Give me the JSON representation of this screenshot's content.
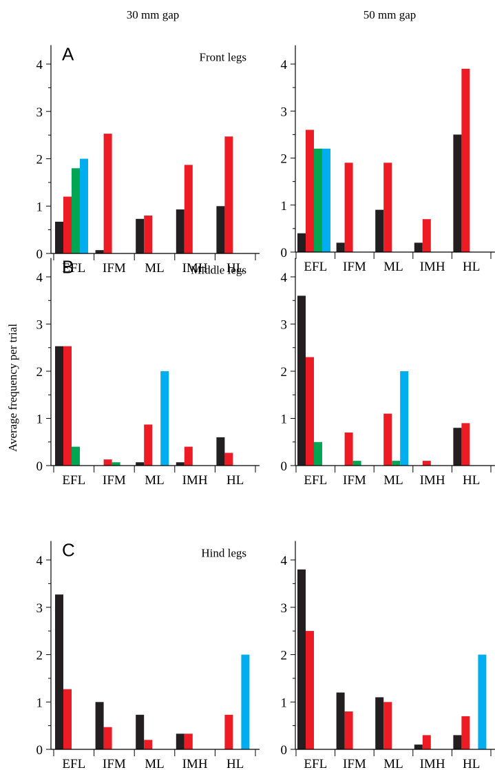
{
  "column_titles": [
    "30 mm gap",
    "50 mm gap"
  ],
  "ylabel": "Average frequency per trial",
  "colors": {
    "series1": "#231f20",
    "series2": "#ed1c24",
    "series3": "#00a651",
    "series4": "#00aeef",
    "axis": "#000000"
  },
  "chart_data": [
    {
      "type": "bar",
      "panel": "A",
      "subtitle": "Front legs",
      "column": "30 mm gap",
      "categories": [
        "EFL",
        "IFM",
        "ML",
        "IMH",
        "HL"
      ],
      "ylim": [
        0,
        4.4
      ],
      "yticks": [
        0,
        1,
        2,
        3,
        4
      ],
      "series": [
        {
          "values": [
            0.67,
            0.07,
            0.73,
            0.93,
            1.0
          ]
        },
        {
          "values": [
            1.2,
            2.53,
            0.8,
            1.87,
            2.47
          ]
        },
        {
          "values": [
            1.8,
            0,
            0,
            0,
            0
          ]
        },
        {
          "values": [
            2.0,
            0,
            0,
            0,
            0
          ]
        }
      ]
    },
    {
      "type": "bar",
      "panel": "A",
      "column": "50 mm gap",
      "categories": [
        "EFL",
        "IFM",
        "ML",
        "IMH",
        "HL"
      ],
      "ylim": [
        0,
        4.4
      ],
      "yticks": [
        0,
        1,
        2,
        3,
        4
      ],
      "series": [
        {
          "values": [
            0.4,
            0.2,
            0.9,
            0.2,
            2.5
          ]
        },
        {
          "values": [
            2.6,
            1.9,
            1.9,
            0.7,
            3.9
          ]
        },
        {
          "values": [
            2.2,
            0,
            0,
            0,
            0
          ]
        },
        {
          "values": [
            2.2,
            0,
            0,
            0,
            0
          ]
        }
      ]
    },
    {
      "type": "bar",
      "panel": "B",
      "subtitle": "Middle legs",
      "column": "30 mm gap",
      "categories": [
        "EFL",
        "IFM",
        "ML",
        "IMH",
        "HL"
      ],
      "ylim": [
        0,
        4.4
      ],
      "yticks": [
        0,
        1,
        2,
        3,
        4
      ],
      "series": [
        {
          "values": [
            2.53,
            0,
            0.07,
            0.07,
            0.6
          ]
        },
        {
          "values": [
            2.53,
            0.13,
            0.87,
            0.4,
            0.27
          ]
        },
        {
          "values": [
            0.4,
            0.07,
            0,
            0,
            0
          ]
        },
        {
          "values": [
            0,
            0,
            2.0,
            0,
            0
          ]
        }
      ]
    },
    {
      "type": "bar",
      "panel": "B",
      "column": "50 mm gap",
      "categories": [
        "EFL",
        "IFM",
        "ML",
        "IMH",
        "HL"
      ],
      "ylim": [
        0,
        4.4
      ],
      "yticks": [
        0,
        1,
        2,
        3,
        4
      ],
      "series": [
        {
          "values": [
            3.6,
            0,
            0,
            0,
            0.8
          ]
        },
        {
          "values": [
            2.3,
            0.7,
            1.1,
            0.1,
            0.9
          ]
        },
        {
          "values": [
            0.5,
            0.1,
            0.1,
            0,
            0
          ]
        },
        {
          "values": [
            0,
            0,
            2.0,
            0,
            0
          ]
        }
      ]
    },
    {
      "type": "bar",
      "panel": "C",
      "subtitle": "Hind legs",
      "column": "30 mm gap",
      "categories": [
        "EFL",
        "IFM",
        "ML",
        "IMH",
        "HL"
      ],
      "ylim": [
        0,
        4.4
      ],
      "yticks": [
        0,
        1,
        2,
        3,
        4
      ],
      "series": [
        {
          "values": [
            3.27,
            1.0,
            0.73,
            0.33,
            0
          ]
        },
        {
          "values": [
            1.27,
            0.47,
            0.2,
            0.33,
            0.73
          ]
        },
        {
          "values": [
            0,
            0,
            0,
            0,
            0
          ]
        },
        {
          "values": [
            0,
            0,
            0,
            0,
            2.0
          ]
        }
      ]
    },
    {
      "type": "bar",
      "panel": "C",
      "column": "50 mm gap",
      "categories": [
        "EFL",
        "IFM",
        "ML",
        "IMH",
        "HL"
      ],
      "ylim": [
        0,
        4.4
      ],
      "yticks": [
        0,
        1,
        2,
        3,
        4
      ],
      "series": [
        {
          "values": [
            3.8,
            1.2,
            1.1,
            0.1,
            0.3
          ]
        },
        {
          "values": [
            2.5,
            0.8,
            1.0,
            0.3,
            0.7
          ]
        },
        {
          "values": [
            0,
            0,
            0,
            0,
            0
          ]
        },
        {
          "values": [
            0,
            0,
            0,
            0,
            2.0
          ]
        }
      ]
    }
  ]
}
